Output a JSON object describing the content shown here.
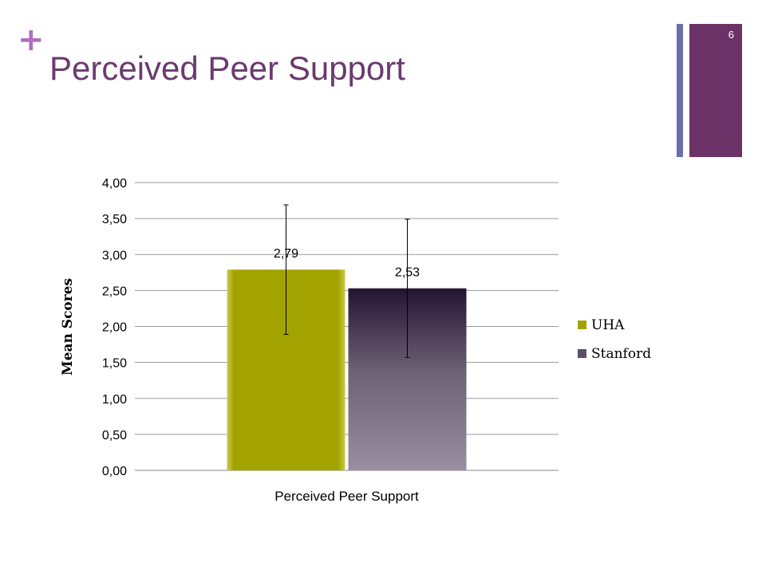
{
  "slide": {
    "plus_glyph": "+",
    "title": "Perceived Peer Support",
    "number": "6",
    "accent_colors": {
      "plus": "#b06fc0",
      "title": "#6b3a6e",
      "stripe_thin": "#6b6eab",
      "stripe_thick": "#6a3266"
    }
  },
  "chart_data": {
    "type": "bar",
    "categories": [
      "Perceived Peer Support"
    ],
    "series": [
      {
        "name": "UHA",
        "values": [
          2.79
        ],
        "labels": [
          "2,79"
        ],
        "error": [
          0.9
        ],
        "color": "#a3a300"
      },
      {
        "name": "Stanford",
        "values": [
          2.53
        ],
        "labels": [
          "2,53"
        ],
        "error": [
          0.96
        ],
        "color": "#2b1a38"
      }
    ],
    "ylabel": "Mean Scores",
    "xlabel": "",
    "ylim": [
      0,
      4
    ],
    "yticks": [
      "0,00",
      "0,50",
      "1,00",
      "1,50",
      "2,00",
      "2,50",
      "3,00",
      "3,50",
      "4,00"
    ],
    "grid": true,
    "legend_position": "right"
  }
}
